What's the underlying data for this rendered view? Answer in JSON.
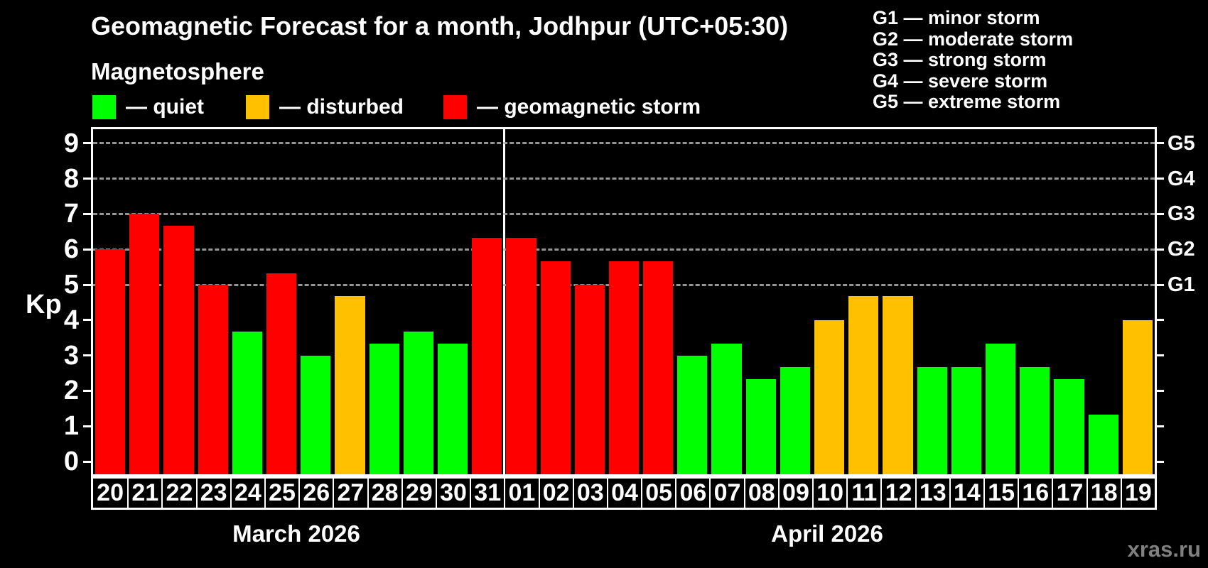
{
  "title": "Geomagnetic Forecast for a month, Jodhpur (UTC+05:30)",
  "subtitle": "Magnetosphere",
  "legend": {
    "items": [
      {
        "label": "— quiet",
        "status": "quiet",
        "color": "#00ff00"
      },
      {
        "label": "— disturbed",
        "status": "disturbed",
        "color": "#ffc000"
      },
      {
        "label": "— geomagnetic storm",
        "status": "storm",
        "color": "#ff0000"
      }
    ]
  },
  "g_legend": {
    "items": [
      "G1 — minor storm",
      "G2 — moderate storm",
      "G3 — strong storm",
      "G4 — severe storm",
      "G5 — extreme storm"
    ]
  },
  "watermark": "xras.ru",
  "chart_data": {
    "type": "bar",
    "title": "Geomagnetic Forecast for a month, Jodhpur (UTC+05:30)",
    "ylabel": "Kp",
    "ylim": [
      0,
      9
    ],
    "kp_axis": {
      "label": "Kp",
      "ticks": [
        0,
        1,
        2,
        3,
        4,
        5,
        6,
        7,
        8,
        9
      ],
      "gridlines": [
        5,
        6,
        7,
        8,
        9
      ]
    },
    "g_axis": [
      {
        "kp": 5,
        "label": "G1"
      },
      {
        "kp": 6,
        "label": "G2"
      },
      {
        "kp": 7,
        "label": "G3"
      },
      {
        "kp": 8,
        "label": "G4"
      },
      {
        "kp": 9,
        "label": "G5"
      }
    ],
    "status_colors": {
      "quiet": "#00ff00",
      "disturbed": "#ffc000",
      "storm": "#ff0000"
    },
    "months": [
      {
        "label": "March 2026",
        "days": [
          {
            "day": "20",
            "kp": 6.0,
            "status": "storm"
          },
          {
            "day": "21",
            "kp": 7.0,
            "status": "storm"
          },
          {
            "day": "22",
            "kp": 6.67,
            "status": "storm"
          },
          {
            "day": "23",
            "kp": 5.0,
            "status": "storm"
          },
          {
            "day": "24",
            "kp": 3.67,
            "status": "quiet"
          },
          {
            "day": "25",
            "kp": 5.33,
            "status": "storm"
          },
          {
            "day": "26",
            "kp": 3.0,
            "status": "quiet"
          },
          {
            "day": "27",
            "kp": 4.67,
            "status": "disturbed"
          },
          {
            "day": "28",
            "kp": 3.33,
            "status": "quiet"
          },
          {
            "day": "29",
            "kp": 3.67,
            "status": "quiet"
          },
          {
            "day": "30",
            "kp": 3.33,
            "status": "quiet"
          },
          {
            "day": "31",
            "kp": 6.33,
            "status": "storm"
          }
        ]
      },
      {
        "label": "April 2026",
        "days": [
          {
            "day": "01",
            "kp": 6.33,
            "status": "storm"
          },
          {
            "day": "02",
            "kp": 5.67,
            "status": "storm"
          },
          {
            "day": "03",
            "kp": 5.0,
            "status": "storm"
          },
          {
            "day": "04",
            "kp": 5.67,
            "status": "storm"
          },
          {
            "day": "05",
            "kp": 5.67,
            "status": "storm"
          },
          {
            "day": "06",
            "kp": 3.0,
            "status": "quiet"
          },
          {
            "day": "07",
            "kp": 3.33,
            "status": "quiet"
          },
          {
            "day": "08",
            "kp": 2.33,
            "status": "quiet"
          },
          {
            "day": "09",
            "kp": 2.67,
            "status": "quiet"
          },
          {
            "day": "10",
            "kp": 4.0,
            "status": "disturbed"
          },
          {
            "day": "11",
            "kp": 4.67,
            "status": "disturbed"
          },
          {
            "day": "12",
            "kp": 4.67,
            "status": "disturbed"
          },
          {
            "day": "13",
            "kp": 2.67,
            "status": "quiet"
          },
          {
            "day": "14",
            "kp": 2.67,
            "status": "quiet"
          },
          {
            "day": "15",
            "kp": 3.33,
            "status": "quiet"
          },
          {
            "day": "16",
            "kp": 2.67,
            "status": "quiet"
          },
          {
            "day": "17",
            "kp": 2.33,
            "status": "quiet"
          },
          {
            "day": "18",
            "kp": 1.33,
            "status": "quiet"
          },
          {
            "day": "19",
            "kp": 4.0,
            "status": "disturbed"
          }
        ]
      }
    ]
  }
}
